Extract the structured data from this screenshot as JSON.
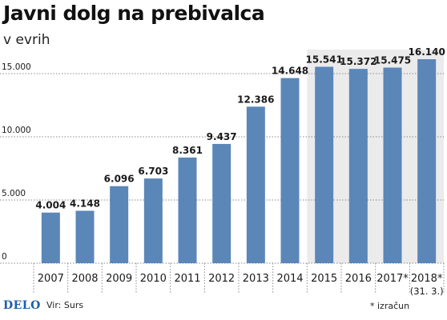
{
  "header": {
    "title": "Javni dolg na prebivalca",
    "subtitle": "v evrih"
  },
  "footer": {
    "logo": "DELO",
    "source": "Vir: Surs",
    "footnote": "* izračun"
  },
  "colors": {
    "bar": "#5b86b8",
    "forecast_band": "#ebebec",
    "grid": "#8a8a8a",
    "text": "#1a1a1a"
  },
  "chart_data": {
    "type": "bar",
    "title": "Javni dolg na prebivalca",
    "subtitle": "v evrih",
    "xlabel": "",
    "ylabel": "",
    "ylim": [
      0,
      16900
    ],
    "yticks": [
      0,
      5000,
      10000,
      15000
    ],
    "ytick_labels": [
      "0",
      "5.000",
      "10.000",
      "15.000"
    ],
    "grid": "horizontal dotted",
    "categories": [
      "2007",
      "2008",
      "2009",
      "2010",
      "2011",
      "2012",
      "2013",
      "2014",
      "2015",
      "2016",
      "2017*",
      "2018*"
    ],
    "category_sublabels": [
      "",
      "",
      "",
      "",
      "",
      "",
      "",
      "",
      "",
      "",
      "",
      "(31. 3.)"
    ],
    "values": [
      4004,
      4148,
      6096,
      6703,
      8361,
      9437,
      12386,
      14648,
      15541,
      15372,
      15475,
      16140
    ],
    "value_labels": [
      "4.004",
      "4.148",
      "6.096",
      "6.703",
      "8.361",
      "9.437",
      "12.386",
      "14.648",
      "15.541",
      "15.372",
      "15.475",
      "16.140"
    ],
    "shaded_from_category": "2015"
  }
}
